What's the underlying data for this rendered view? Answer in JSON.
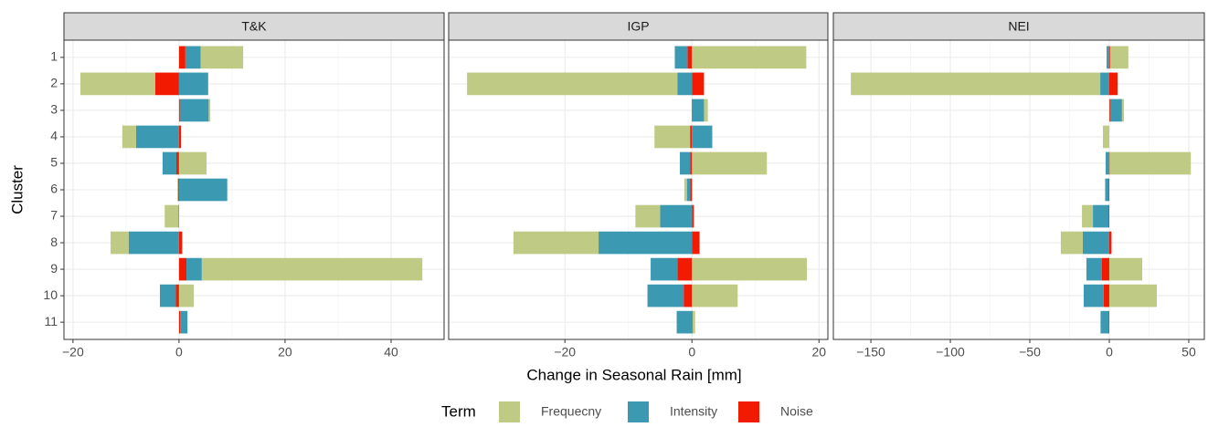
{
  "chart_data": {
    "type": "bar",
    "orientation": "horizontal",
    "stacked": true,
    "grid": true,
    "x_label": "Change in Seasonal Rain [mm]",
    "y_label": "Cluster",
    "legend_title": "Term",
    "legend_position": "bottom",
    "categories": [
      "1",
      "2",
      "3",
      "4",
      "5",
      "6",
      "7",
      "8",
      "9",
      "10",
      "11"
    ],
    "panels": [
      {
        "title": "T&K",
        "xlim": [
          -21.7,
          50
        ],
        "xticks": [
          {
            "value": -20,
            "label": "−20"
          },
          0,
          20,
          40
        ],
        "series": [
          {
            "name": "Frequecny",
            "color": "#bfca85",
            "values": [
              8.0,
              -14.1,
              0.3,
              -2.6,
              5.2,
              -0.1,
              -2.6,
              -3.4,
              41.6,
              2.8,
              0.0
            ]
          },
          {
            "name": "Intensity",
            "color": "#3b9ab2",
            "values": [
              2.9,
              5.5,
              5.5,
              -8.1,
              -2.6,
              9.1,
              0.0,
              -9.5,
              2.9,
              -3.0,
              1.4
            ]
          },
          {
            "name": "Noise",
            "color": "#f21a00",
            "values": [
              1.2,
              -4.5,
              0.1,
              0.4,
              -0.5,
              -0.2,
              -0.1,
              0.6,
              1.4,
              -0.6,
              0.2
            ]
          }
        ]
      },
      {
        "title": "IGP",
        "xlim": [
          -38.3,
          21.4
        ],
        "xticks": [
          {
            "value": -20,
            "label": "−20"
          },
          0,
          20
        ],
        "series": [
          {
            "name": "Frequecny",
            "color": "#bfca85",
            "values": [
              18.0,
              -33.1,
              0.6,
              -5.6,
              11.8,
              -0.4,
              -3.9,
              -13.4,
              18.1,
              7.2,
              0.4
            ]
          },
          {
            "name": "Intensity",
            "color": "#3b9ab2",
            "values": [
              -2.0,
              -2.3,
              1.8,
              3.2,
              -1.6,
              -0.5,
              -5.0,
              -14.7,
              -4.2,
              -5.7,
              -2.4
            ]
          },
          {
            "name": "Noise",
            "color": "#f21a00",
            "values": [
              -0.7,
              1.9,
              0.1,
              -0.3,
              -0.3,
              -0.3,
              0.3,
              1.2,
              -2.3,
              -1.3,
              0.1
            ]
          }
        ]
      },
      {
        "title": "NEI",
        "xlim": [
          -173.6,
          59.8
        ],
        "xticks": [
          {
            "value": -150,
            "label": "−150"
          },
          {
            "value": -100,
            "label": "−100"
          },
          {
            "value": -50,
            "label": "−50"
          },
          0,
          50
        ],
        "series": [
          {
            "name": "Frequecny",
            "color": "#bfca85",
            "values": [
              11.5,
              -156.9,
              1.2,
              -4.0,
              51.1,
              -0.3,
              -6.9,
              -13.8,
              20.7,
              29.9,
              0.0
            ]
          },
          {
            "name": "Intensity",
            "color": "#3b9ab2",
            "values": [
              -1.7,
              -5.7,
              7.5,
              0.0,
              -2.3,
              -2.0,
              -9.8,
              -16.7,
              -9.8,
              -12.6,
              -5.2
            ]
          },
          {
            "name": "Noise",
            "color": "#f21a00",
            "values": [
              0.5,
              5.2,
              0.5,
              0.0,
              0.2,
              -0.5,
              -0.5,
              1.4,
              -4.6,
              -3.5,
              -0.3
            ]
          }
        ]
      }
    ]
  }
}
